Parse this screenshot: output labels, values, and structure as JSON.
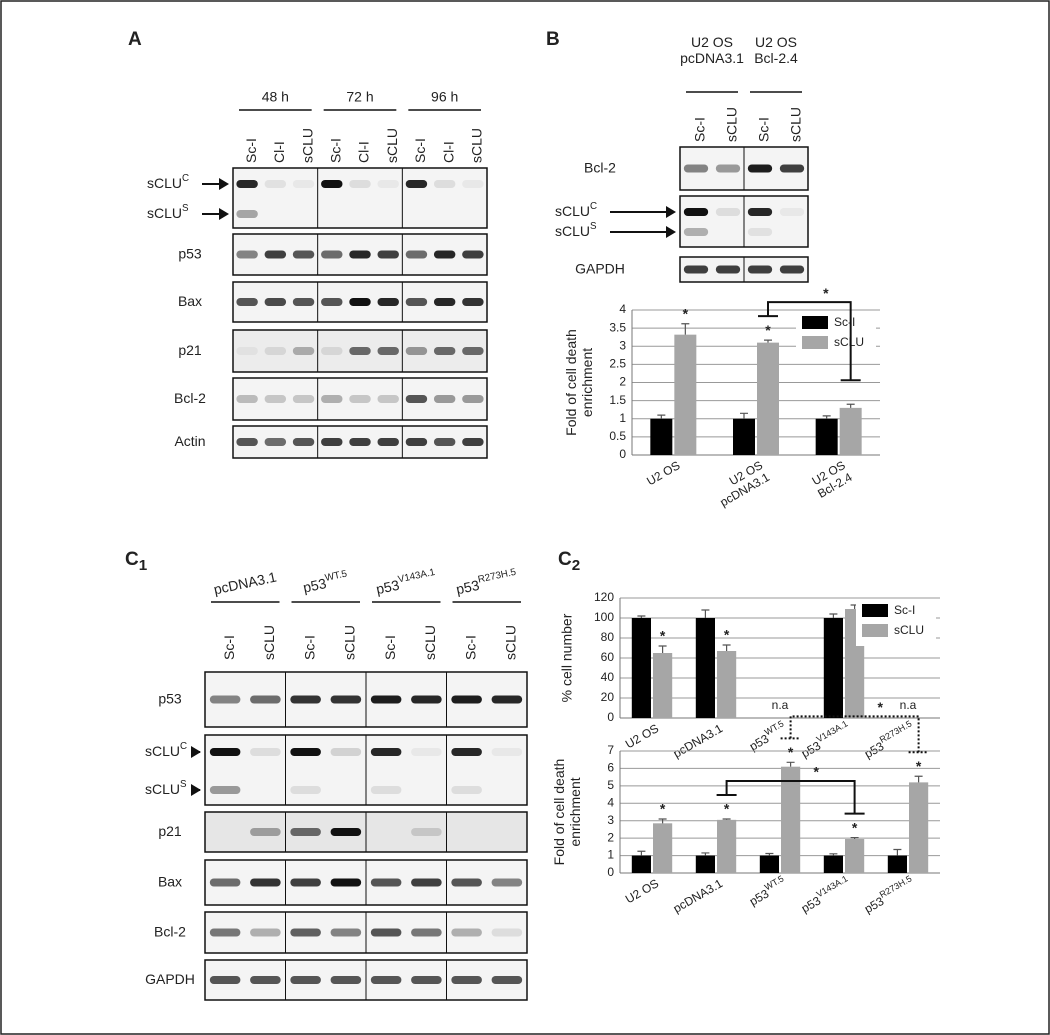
{
  "panels": {
    "A": {
      "label": "A",
      "groups": [
        "48 h",
        "72 h",
        "96 h"
      ],
      "lanes": [
        "Sc-I",
        "Cl-I",
        "sCLU",
        "Sc-I",
        "Cl-I",
        "sCLU",
        "Sc-I",
        "Cl-I",
        "sCLU"
      ],
      "rows": [
        {
          "name": "sCLU",
          "sup": "C"
        },
        {
          "name": "sCLU",
          "sup": "S"
        },
        {
          "name": "p53"
        },
        {
          "name": "Bax"
        },
        {
          "name": "p21"
        },
        {
          "name": "Bcl-2"
        },
        {
          "name": "Actin"
        }
      ]
    },
    "B": {
      "label": "B",
      "groups": [
        "U2 OS\npcDNA3.1",
        "U2 OS\nBcl-2.4"
      ],
      "lanes": [
        "Sc-I",
        "sCLU",
        "Sc-I",
        "sCLU"
      ],
      "rows": [
        {
          "name": "Bcl-2"
        },
        {
          "name": "sCLU",
          "sup": "C"
        },
        {
          "name": "sCLU",
          "sup": "S"
        },
        {
          "name": "GAPDH"
        }
      ]
    },
    "C1": {
      "label": "C",
      "sub": "1",
      "groups": [
        {
          "name": "pcDNA3.1"
        },
        {
          "name": "p53",
          "sup": "WT.5"
        },
        {
          "name": "p53",
          "sup": "V143A.1"
        },
        {
          "name": "p53",
          "sup": "R273H.5"
        }
      ],
      "lanes": [
        "Sc-I",
        "sCLU",
        "Sc-I",
        "sCLU",
        "Sc-I",
        "sCLU",
        "Sc-I",
        "sCLU"
      ],
      "rows": [
        {
          "name": "p53"
        },
        {
          "name": "sCLU",
          "sup": "C"
        },
        {
          "name": "sCLU",
          "sup": "S"
        },
        {
          "name": "p21"
        },
        {
          "name": "Bax"
        },
        {
          "name": "Bcl-2"
        },
        {
          "name": "GAPDH"
        }
      ]
    },
    "C2": {
      "label": "C",
      "sub": "2"
    }
  },
  "chart_data": [
    {
      "type": "bar",
      "ylabel": "Fold of cell death\nenrichment",
      "categories": [
        "U2 OS",
        "U2 OS\npcDNA3.1",
        "U2 OS\nBcl-2.4"
      ],
      "ylim": [
        0,
        4
      ],
      "yticks": [
        0,
        0.5,
        1,
        1.5,
        2,
        2.5,
        3,
        3.5,
        4
      ],
      "grid": true,
      "legend": "upper right",
      "series": [
        {
          "name": "Sc-I",
          "color": "#000000",
          "values": [
            1,
            1,
            1
          ],
          "errors": [
            0.1,
            0.15,
            0.08
          ]
        },
        {
          "name": "sCLU",
          "color": "#a6a6a6",
          "values": [
            3.32,
            3.1,
            1.3
          ],
          "errors": [
            0.3,
            0.07,
            0.1
          ],
          "significance": [
            "*",
            "*",
            null
          ]
        }
      ],
      "comparisons": [
        {
          "from": {
            "series": 1,
            "category": 1
          },
          "to": {
            "series": 1,
            "category": 2
          },
          "label": "*",
          "line": "solid"
        }
      ]
    },
    {
      "type": "bar",
      "ylabel": "% cell number",
      "categories": [
        "U2 OS",
        "pcDNA3.1",
        "p53",
        "p53",
        "p53"
      ],
      "category_superscripts": [
        null,
        null,
        "WT.5",
        "V143A.1",
        "R273H.5"
      ],
      "annotations": [
        null,
        null,
        "n.a",
        null,
        "n.a"
      ],
      "ylim": [
        0,
        120
      ],
      "yticks": [
        0,
        20,
        40,
        60,
        80,
        100,
        120
      ],
      "grid": true,
      "legend": "upper right",
      "series": [
        {
          "name": "Sc-I",
          "color": "#000000",
          "values": [
            100,
            100,
            null,
            100,
            null
          ],
          "errors": [
            2,
            8,
            null,
            4,
            null
          ]
        },
        {
          "name": "sCLU",
          "color": "#a6a6a6",
          "values": [
            65,
            67,
            null,
            109,
            null
          ],
          "errors": [
            7,
            6,
            null,
            4,
            null
          ],
          "significance": [
            "*",
            "*",
            null,
            null,
            null
          ]
        }
      ],
      "comparisons": []
    },
    {
      "type": "bar",
      "ylabel": "Fold of cell death\nenrichment",
      "categories": [
        "U2 OS",
        "pcDNA3.1",
        "p53",
        "p53",
        "p53"
      ],
      "category_superscripts": [
        null,
        null,
        "WT.5",
        "V143A.1",
        "R273H.5"
      ],
      "ylim": [
        0,
        7
      ],
      "yticks": [
        0,
        1,
        2,
        3,
        4,
        5,
        6,
        7
      ],
      "grid": true,
      "series": [
        {
          "name": "Sc-I",
          "color": "#000000",
          "values": [
            1,
            1,
            1,
            1,
            1
          ],
          "errors": [
            0.25,
            0.15,
            0.12,
            0.1,
            0.35
          ]
        },
        {
          "name": "sCLU",
          "color": "#a6a6a6",
          "values": [
            2.85,
            3.05,
            6.1,
            1.95,
            5.2
          ],
          "errors": [
            0.25,
            0.05,
            0.25,
            0.08,
            0.35
          ],
          "significance": [
            "*",
            "*",
            "*",
            "*",
            "*"
          ]
        }
      ],
      "comparisons": [
        {
          "from": {
            "series": 1,
            "category": 1
          },
          "to": {
            "series": 1,
            "category": 3
          },
          "label": "*",
          "line": "solid"
        },
        {
          "from": {
            "series": 1,
            "category": 2
          },
          "to": {
            "series": 1,
            "category": 4
          },
          "label": "*",
          "line": "dotted"
        }
      ]
    }
  ]
}
